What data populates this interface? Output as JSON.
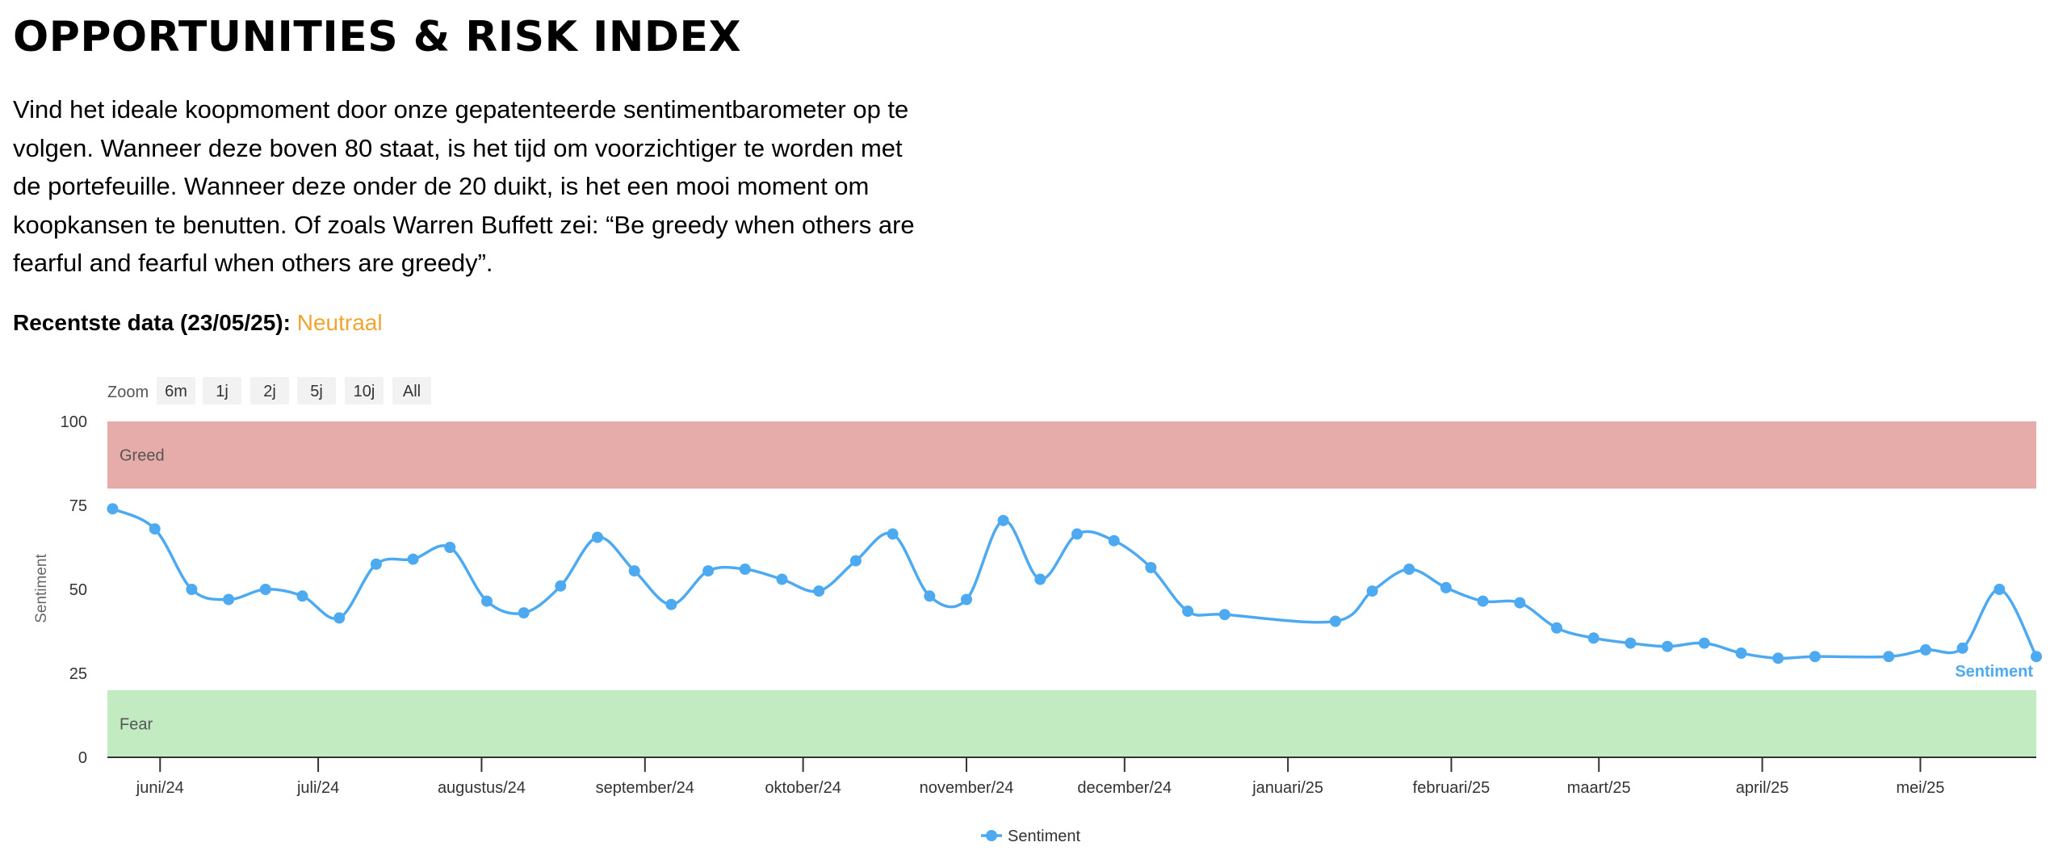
{
  "header": {
    "title": "OPPORTUNITIES & RISK INDEX",
    "intro": "Vind het ideale koopmoment door onze gepatenteerde sentimentbarometer op te volgen. Wanneer deze boven 80 staat, is het tijd om voorzichtiger te worden met de portefeuille. Wanneer deze onder de 20 duikt, is het een mooi moment om koopkansen te benutten. Of zoals Warren Buffett zei: “Be greedy when others are fearful and fearful when others are greedy”.",
    "latest_label": "Recentste data (23/05/25):",
    "latest_status": "Neutraal"
  },
  "zoom": {
    "label": "Zoom",
    "buttons": [
      "6m",
      "1j",
      "2j",
      "5j",
      "10j",
      "All"
    ]
  },
  "colors": {
    "line": "#4DAAF0",
    "greed_band": "#E6ACAA",
    "fear_band": "#C2EBC1",
    "status": "#F0A531"
  },
  "chart_data": {
    "type": "line",
    "ylabel": "Sentiment",
    "ylim": [
      0,
      100
    ],
    "yticks": [
      0,
      25,
      50,
      75,
      100
    ],
    "xlim": [
      "2024-05-22",
      "2025-05-23"
    ],
    "x_ticks": [
      {
        "date": "2024-06-01",
        "label": "juni/24"
      },
      {
        "date": "2024-07-01",
        "label": "juli/24"
      },
      {
        "date": "2024-08-01",
        "label": "augustus/24"
      },
      {
        "date": "2024-09-01",
        "label": "september/24"
      },
      {
        "date": "2024-10-01",
        "label": "oktober/24"
      },
      {
        "date": "2024-11-01",
        "label": "november/24"
      },
      {
        "date": "2024-12-01",
        "label": "december/24"
      },
      {
        "date": "2025-01-01",
        "label": "januari/25"
      },
      {
        "date": "2025-02-01",
        "label": "februari/25"
      },
      {
        "date": "2025-03-01",
        "label": "maart/25"
      },
      {
        "date": "2025-04-01",
        "label": "april/25"
      },
      {
        "date": "2025-05-01",
        "label": "mei/25"
      }
    ],
    "bands": [
      {
        "label": "Greed",
        "from": 80,
        "to": 100
      },
      {
        "label": "Fear",
        "from": 0,
        "to": 20
      }
    ],
    "series": [
      {
        "name": "Sentiment",
        "end_label": "Sentiment",
        "points": [
          {
            "x": "2024-05-23",
            "y": 74
          },
          {
            "x": "2024-05-31",
            "y": 68
          },
          {
            "x": "2024-06-07",
            "y": 50
          },
          {
            "x": "2024-06-14",
            "y": 47
          },
          {
            "x": "2024-06-21",
            "y": 50
          },
          {
            "x": "2024-06-28",
            "y": 48
          },
          {
            "x": "2024-07-05",
            "y": 41.5
          },
          {
            "x": "2024-07-12",
            "y": 57.5
          },
          {
            "x": "2024-07-19",
            "y": 59
          },
          {
            "x": "2024-07-26",
            "y": 62.5
          },
          {
            "x": "2024-08-02",
            "y": 46.5
          },
          {
            "x": "2024-08-09",
            "y": 43
          },
          {
            "x": "2024-08-16",
            "y": 51
          },
          {
            "x": "2024-08-23",
            "y": 65.5
          },
          {
            "x": "2024-08-30",
            "y": 55.5
          },
          {
            "x": "2024-09-06",
            "y": 45.5
          },
          {
            "x": "2024-09-13",
            "y": 55.5
          },
          {
            "x": "2024-09-20",
            "y": 56
          },
          {
            "x": "2024-09-27",
            "y": 53
          },
          {
            "x": "2024-10-04",
            "y": 49.5
          },
          {
            "x": "2024-10-11",
            "y": 58.5
          },
          {
            "x": "2024-10-18",
            "y": 66.5
          },
          {
            "x": "2024-10-25",
            "y": 48
          },
          {
            "x": "2024-11-01",
            "y": 47
          },
          {
            "x": "2024-11-08",
            "y": 70.5
          },
          {
            "x": "2024-11-15",
            "y": 53
          },
          {
            "x": "2024-11-22",
            "y": 66.5
          },
          {
            "x": "2024-11-29",
            "y": 64.5
          },
          {
            "x": "2024-12-06",
            "y": 56.5
          },
          {
            "x": "2024-12-13",
            "y": 43.5
          },
          {
            "x": "2024-12-20",
            "y": 42.5
          },
          {
            "x": "2025-01-10",
            "y": 40.5
          },
          {
            "x": "2025-01-17",
            "y": 49.5
          },
          {
            "x": "2025-01-24",
            "y": 56
          },
          {
            "x": "2025-01-31",
            "y": 50.5
          },
          {
            "x": "2025-02-07",
            "y": 46.5
          },
          {
            "x": "2025-02-14",
            "y": 46
          },
          {
            "x": "2025-02-21",
            "y": 38.5
          },
          {
            "x": "2025-02-28",
            "y": 35.5
          },
          {
            "x": "2025-03-07",
            "y": 34
          },
          {
            "x": "2025-03-14",
            "y": 33
          },
          {
            "x": "2025-03-21",
            "y": 34
          },
          {
            "x": "2025-03-28",
            "y": 31
          },
          {
            "x": "2025-04-04",
            "y": 29.5
          },
          {
            "x": "2025-04-11",
            "y": 30
          },
          {
            "x": "2025-04-25",
            "y": 30
          },
          {
            "x": "2025-05-02",
            "y": 32
          },
          {
            "x": "2025-05-09",
            "y": 32.5
          },
          {
            "x": "2025-05-16",
            "y": 50
          },
          {
            "x": "2025-05-23",
            "y": 30
          }
        ]
      }
    ],
    "legend": {
      "position": "bottom-center",
      "label": "Sentiment"
    }
  }
}
